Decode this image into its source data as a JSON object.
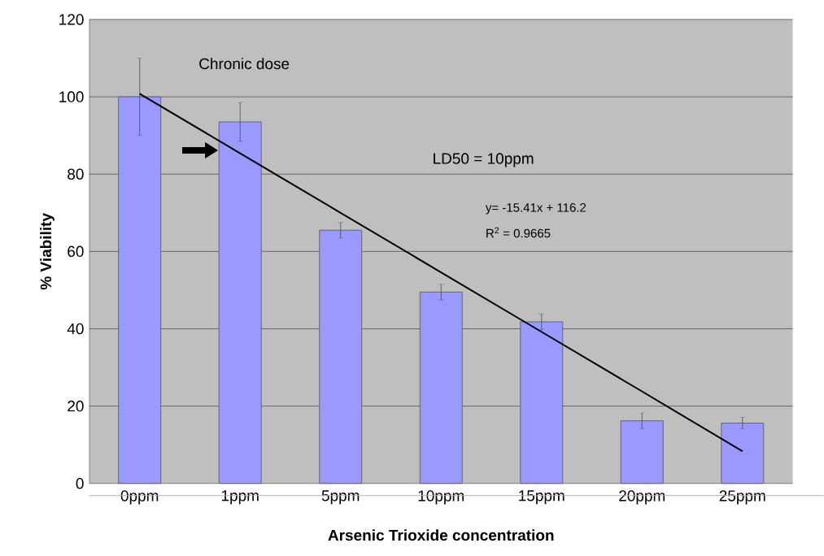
{
  "chart_data": {
    "type": "bar",
    "xlabel": "Arsenic Trioxide concentration",
    "ylabel": "% Viability",
    "categories": [
      "0ppm",
      "1ppm",
      "5ppm",
      "10ppm",
      "15ppm",
      "20ppm",
      "25ppm"
    ],
    "series": [
      {
        "color": "#9999ff",
        "values": [
          100,
          93.5,
          65.5,
          49.5,
          41.8,
          16.2,
          15.6
        ],
        "errors": [
          10,
          5,
          2,
          2,
          2,
          2,
          1.5
        ]
      },
      {
        "type": "line",
        "color": "#000000",
        "values": [
          100.8,
          85.4,
          70.0,
          54.6,
          39.2,
          23.8,
          8.3
        ]
      }
    ],
    "ylim": [
      0,
      120
    ],
    "yticks": [
      0,
      20,
      40,
      60,
      80,
      100,
      120
    ],
    "grid": "y",
    "annotations": [
      "Chronic dose",
      "LD50 = 10ppm",
      "y= -15.41x + 116.2",
      "R$^{2}$ = 0.9665"
    ]
  }
}
